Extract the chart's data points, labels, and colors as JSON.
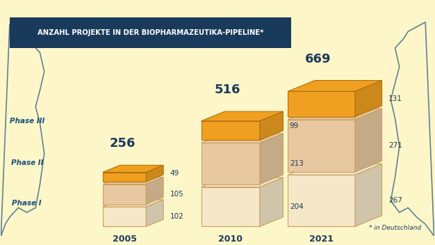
{
  "background_color": "#fdf6c8",
  "title": "ANZAHL PROJEKTE IN DER BIOPHARMAZEUTIKA-PIPELINE*",
  "title_bg_color": "#1a3a5c",
  "title_text_color": "#ffffff",
  "years": [
    "2005",
    "2010",
    "2021"
  ],
  "totals": [
    "256",
    "516",
    "669"
  ],
  "phase_labels": [
    "Phase III",
    "Phase II",
    "Phase I"
  ],
  "phase_label_color": "#1a5080",
  "data": {
    "2005": {
      "phase3": 49,
      "phase2": 105,
      "phase1": 102,
      "total": 256
    },
    "2010": {
      "phase3": 99,
      "phase2": 213,
      "phase1": 204,
      "total": 516
    },
    "2021": {
      "phase3": 131,
      "phase2": 271,
      "phase1": 267,
      "total": 669
    }
  },
  "color_orange": "#f0a020",
  "color_beige": "#e8c8a0",
  "color_light": "#f5e8c8",
  "color_dark_blue": "#1a3a5c",
  "color_mid_blue": "#1a5080",
  "footnote": "* in Deutschland",
  "bar_edge_color": "#c8a060"
}
